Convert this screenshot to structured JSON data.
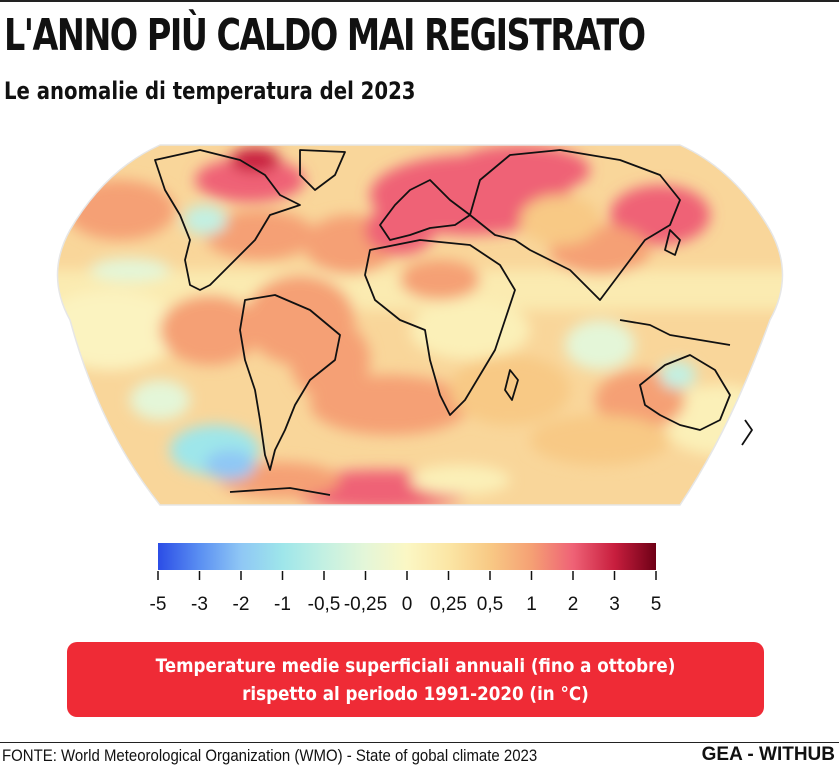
{
  "header": {
    "title": "L'ANNO PIÙ CALDO MAI REGISTRATO",
    "subtitle": "Le anomalie di temperatura del 2023"
  },
  "map": {
    "projection": "robinson-like",
    "coastline_color": "#111111"
  },
  "legend": {
    "stops": [
      {
        "label": "-5",
        "color": "#2b4de6"
      },
      {
        "label": "-3",
        "color": "#5a8ff2"
      },
      {
        "label": "-2",
        "color": "#8fc7f5"
      },
      {
        "label": "-1",
        "color": "#9ee6ea"
      },
      {
        "label": "-0,5",
        "color": "#c3f0e2"
      },
      {
        "label": "-0,25",
        "color": "#e4f6d8"
      },
      {
        "label": "0",
        "color": "#fbf7c4"
      },
      {
        "label": "0,25",
        "color": "#fbe6a5"
      },
      {
        "label": "0,5",
        "color": "#f8c985"
      },
      {
        "label": "1",
        "color": "#f5a074"
      },
      {
        "label": "2",
        "color": "#ef6276"
      },
      {
        "label": "3",
        "color": "#c81e3e"
      },
      {
        "label": "5",
        "color": "#6e0016"
      }
    ]
  },
  "note": {
    "line1": "Temperature medie superficiali annuali (fino a ottobre)",
    "line2": "rispetto al periodo 1991-2020 (in °C)",
    "color": "#ef2b36"
  },
  "footer": {
    "source": "FONTE: World Meteorological Organization (WMO) - State of gobal climate 2023",
    "brand": "GEA - WITHUB"
  }
}
